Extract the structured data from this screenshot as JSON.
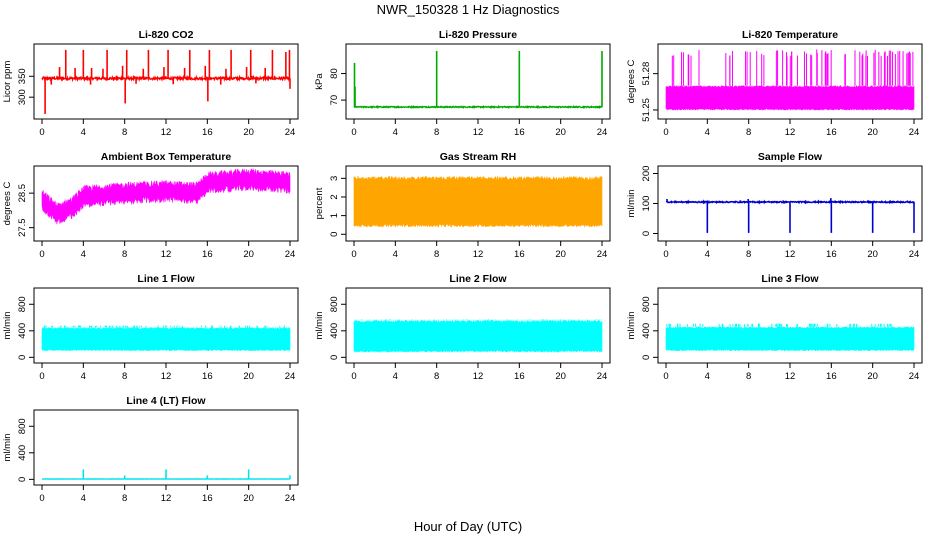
{
  "figure": {
    "title": "NWR_150328  1 Hz Diagnostics",
    "xlabel": "Hour of Day (UTC)"
  },
  "chart_data": [
    {
      "type": "line",
      "title": "Li-820 CO2",
      "ylabel": "Licor ppm",
      "color": "#ff0000",
      "xlim": [
        0,
        24
      ],
      "xticks": [
        0,
        4,
        8,
        12,
        16,
        20,
        24
      ],
      "ylim": [
        255,
        420
      ],
      "yticks": [
        300,
        350
      ],
      "baseline": 345,
      "noise": 3,
      "spikes": [
        {
          "x": 0.3,
          "y": 260
        },
        {
          "x": 1.7,
          "y": 372
        },
        {
          "x": 2.3,
          "y": 413
        },
        {
          "x": 3.2,
          "y": 370
        },
        {
          "x": 4.0,
          "y": 413
        },
        {
          "x": 4.8,
          "y": 370
        },
        {
          "x": 5.9,
          "y": 368
        },
        {
          "x": 6.3,
          "y": 413
        },
        {
          "x": 7.8,
          "y": 375
        },
        {
          "x": 8.2,
          "y": 413
        },
        {
          "x": 8.05,
          "y": 285
        },
        {
          "x": 9.8,
          "y": 368
        },
        {
          "x": 10.3,
          "y": 413
        },
        {
          "x": 11.8,
          "y": 372
        },
        {
          "x": 12.2,
          "y": 413
        },
        {
          "x": 13.8,
          "y": 370
        },
        {
          "x": 14.3,
          "y": 413
        },
        {
          "x": 15.8,
          "y": 375
        },
        {
          "x": 16.2,
          "y": 413
        },
        {
          "x": 16.05,
          "y": 290
        },
        {
          "x": 17.8,
          "y": 368
        },
        {
          "x": 18.3,
          "y": 413
        },
        {
          "x": 19.8,
          "y": 372
        },
        {
          "x": 20.2,
          "y": 413
        },
        {
          "x": 21.6,
          "y": 370
        },
        {
          "x": 22.3,
          "y": 413
        },
        {
          "x": 23.6,
          "y": 408
        },
        {
          "x": 23.95,
          "y": 413
        },
        {
          "x": 0.9,
          "y": 330
        },
        {
          "x": 4.7,
          "y": 330
        },
        {
          "x": 9.1,
          "y": 332
        },
        {
          "x": 12.7,
          "y": 331
        },
        {
          "x": 17.3,
          "y": 330
        },
        {
          "x": 20.7,
          "y": 333
        },
        {
          "x": 24.0,
          "y": 320
        }
      ]
    },
    {
      "type": "line",
      "title": "Li-820 Pressure",
      "ylabel": "kPa",
      "color": "#00aa00",
      "xlim": [
        0,
        24
      ],
      "xticks": [
        0,
        4,
        8,
        12,
        16,
        20,
        24
      ],
      "ylim": [
        64,
        90
      ],
      "yticks": [
        70,
        80
      ],
      "baseline": 67.4,
      "noise": 0.2,
      "spikes": [
        {
          "x": 0.05,
          "y": 84
        },
        {
          "x": 0.1,
          "y": 75
        },
        {
          "x": 8.0,
          "y": 88.5
        },
        {
          "x": 16.0,
          "y": 88.5
        },
        {
          "x": 24.0,
          "y": 88.5
        }
      ]
    },
    {
      "type": "band",
      "title": "Li-820 Temperature",
      "ylabel": "degrees C",
      "color": "#ff00ff",
      "xlim": [
        0,
        24
      ],
      "xticks": [
        0,
        4,
        8,
        12,
        16,
        20,
        24
      ],
      "ylim": [
        51.245,
        51.302
      ],
      "yticks": [
        51.25,
        51.28
      ],
      "band": [
        51.25,
        51.27
      ],
      "spike_top": 51.3
    },
    {
      "type": "band",
      "title": "Ambient Box Temperature",
      "ylabel": "degrees C",
      "color": "#ff00ff",
      "xlim": [
        0,
        24
      ],
      "xticks": [
        0,
        4,
        8,
        12,
        16,
        20,
        24
      ],
      "ylim": [
        27.2,
        29.2
      ],
      "yticks": [
        27.5,
        28.5
      ],
      "centerline": [
        [
          0,
          28.3
        ],
        [
          1.5,
          27.9
        ],
        [
          3,
          28.1
        ],
        [
          4,
          28.4
        ],
        [
          8,
          28.5
        ],
        [
          12,
          28.55
        ],
        [
          15,
          28.5
        ],
        [
          16,
          28.8
        ],
        [
          20,
          28.9
        ],
        [
          24,
          28.8
        ]
      ],
      "halfwidth": 0.25
    },
    {
      "type": "band",
      "title": "Gas Stream RH",
      "ylabel": "percent",
      "color": "#ffa500",
      "xlim": [
        0,
        24
      ],
      "xticks": [
        0,
        4,
        8,
        12,
        16,
        20,
        24
      ],
      "ylim": [
        -0.2,
        3.5
      ],
      "yticks": [
        0,
        1,
        2,
        3
      ],
      "band": [
        0.4,
        3.1
      ]
    },
    {
      "type": "line",
      "title": "Sample Flow",
      "ylabel": "ml/min",
      "color": "#0000cd",
      "xlim": [
        0,
        24
      ],
      "xticks": [
        0,
        4,
        8,
        12,
        16,
        20,
        24
      ],
      "ylim": [
        -15,
        215
      ],
      "yticks": [
        0,
        100,
        200
      ],
      "baseline": 105,
      "noise": 2,
      "spikes": [
        {
          "x": 0.1,
          "y": 115
        },
        {
          "x": 4.0,
          "y": 2
        },
        {
          "x": 7.95,
          "y": 115
        },
        {
          "x": 8.0,
          "y": 2
        },
        {
          "x": 12.0,
          "y": 2
        },
        {
          "x": 15.95,
          "y": 118
        },
        {
          "x": 16.0,
          "y": 2
        },
        {
          "x": 20.0,
          "y": 2
        },
        {
          "x": 24.0,
          "y": 2
        }
      ]
    },
    {
      "type": "band",
      "title": "Line 1 Flow",
      "ylabel": "ml/min",
      "color": "#00ffff",
      "xlim": [
        0,
        24
      ],
      "xticks": [
        0,
        4,
        8,
        12,
        16,
        20,
        24
      ],
      "ylim": [
        -40,
        1000
      ],
      "yticks": [
        0,
        400,
        800
      ],
      "band": [
        100,
        450
      ],
      "spike_top": 480
    },
    {
      "type": "band",
      "title": "Line 2 Flow",
      "ylabel": "ml/min",
      "color": "#00ffff",
      "xlim": [
        0,
        24
      ],
      "xticks": [
        0,
        4,
        8,
        12,
        16,
        20,
        24
      ],
      "ylim": [
        -40,
        1000
      ],
      "yticks": [
        0,
        400,
        800
      ],
      "band": [
        80,
        560
      ],
      "spike_top": 570
    },
    {
      "type": "band",
      "title": "Line 3 Flow",
      "ylabel": "ml/min",
      "color": "#00ffff",
      "xlim": [
        0,
        24
      ],
      "xticks": [
        0,
        4,
        8,
        12,
        16,
        20,
        24
      ],
      "ylim": [
        -40,
        1000
      ],
      "yticks": [
        0,
        400,
        800
      ],
      "band": [
        100,
        460
      ],
      "spike_top": 510
    },
    {
      "type": "line",
      "title": "Line 4 (LT) Flow",
      "ylabel": "ml/min",
      "color": "#00e5ee",
      "xlim": [
        0,
        24
      ],
      "xticks": [
        0,
        4,
        8,
        12,
        16,
        20,
        24
      ],
      "ylim": [
        -40,
        1000
      ],
      "yticks": [
        0,
        400,
        800
      ],
      "baseline": 5,
      "noise": 2,
      "spikes": [
        {
          "x": 4.0,
          "y": 150
        },
        {
          "x": 8.0,
          "y": 60
        },
        {
          "x": 12.0,
          "y": 150
        },
        {
          "x": 16.0,
          "y": 60
        },
        {
          "x": 20.0,
          "y": 150
        },
        {
          "x": 24.0,
          "y": 60
        }
      ]
    }
  ]
}
